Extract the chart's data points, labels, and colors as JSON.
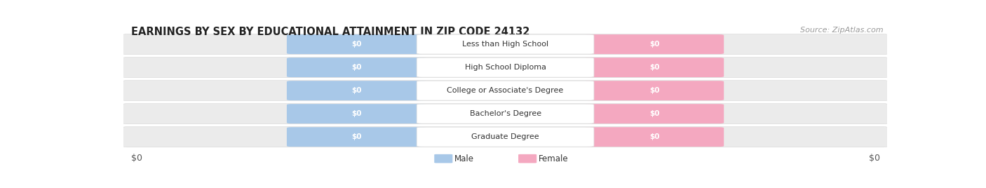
{
  "title": "EARNINGS BY SEX BY EDUCATIONAL ATTAINMENT IN ZIP CODE 24132",
  "source": "Source: ZipAtlas.com",
  "categories": [
    "Less than High School",
    "High School Diploma",
    "College or Associate's Degree",
    "Bachelor's Degree",
    "Graduate Degree"
  ],
  "male_values": [
    0,
    0,
    0,
    0,
    0
  ],
  "female_values": [
    0,
    0,
    0,
    0,
    0
  ],
  "male_color": "#a8c8e8",
  "female_color": "#f4a8c0",
  "row_bg_color": "#ebebeb",
  "row_alt_color": "#f5f5f5",
  "male_label": "Male",
  "female_label": "Female",
  "xlabel_left": "$0",
  "xlabel_right": "$0",
  "value_label": "$0",
  "title_fontsize": 10.5,
  "source_fontsize": 8,
  "cat_fontsize": 8,
  "val_fontsize": 7.5,
  "legend_fontsize": 8.5,
  "background_color": "#ffffff",
  "center_label_bg": "#ffffff",
  "bar_border_color": "#cccccc"
}
